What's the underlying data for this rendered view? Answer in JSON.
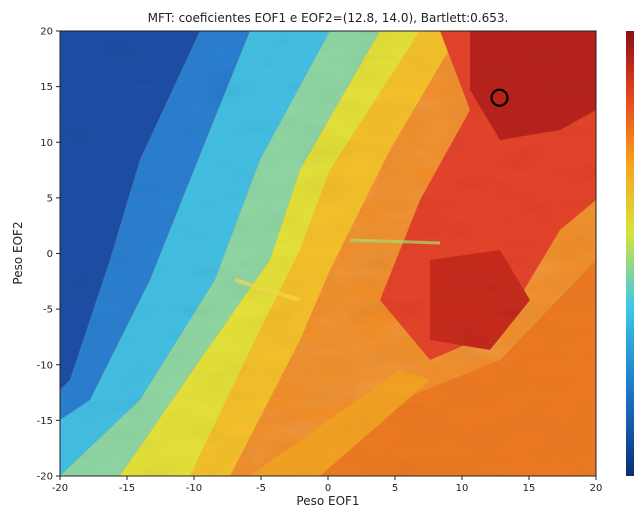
{
  "chart_data": {
    "type": "heatmap",
    "title": "MFT: coeficientes EOF1 e EOF2=(12.8, 14.0), Bartlett:0.653.",
    "xlabel": "Peso EOF1",
    "ylabel": "Peso EOF2",
    "xlim": [
      -20,
      20
    ],
    "ylim": [
      -20,
      20
    ],
    "x_ticks": [
      -20,
      -15,
      -10,
      -5,
      0,
      5,
      10,
      15,
      20
    ],
    "y_ticks": [
      -20,
      -15,
      -10,
      -5,
      0,
      5,
      10,
      15,
      20
    ],
    "marker": {
      "x": 12.8,
      "y": 14.0,
      "shape": "circle"
    },
    "colormap": "jet",
    "colorbar": true,
    "grid": false
  }
}
